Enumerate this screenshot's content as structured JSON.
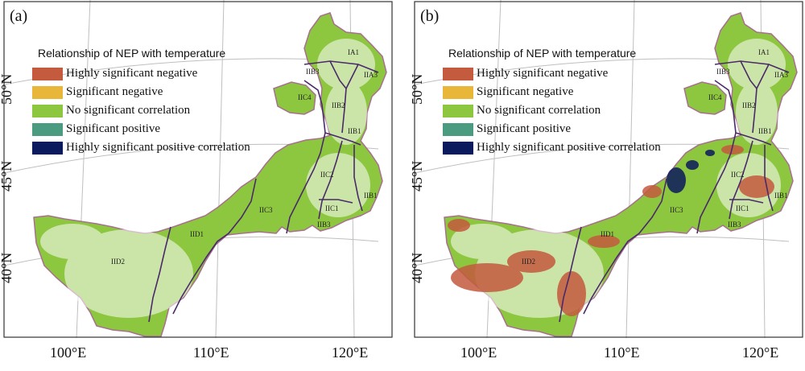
{
  "legend": {
    "title": "Relationship of NEP with temperature",
    "items": [
      {
        "label": "Highly significant negative",
        "color": "#c45a3e"
      },
      {
        "label": "Significant negative",
        "color": "#e8b73a"
      },
      {
        "label": "No significant  correlation",
        "color": "#8dc63f"
      },
      {
        "label": "Significant positive",
        "color": "#4a9b7f"
      },
      {
        "label": "Highly significant positive correlation",
        "color": "#0b1a5c"
      }
    ]
  },
  "panels": [
    {
      "label": "(a)"
    },
    {
      "label": "(b)"
    }
  ],
  "axes": {
    "lon_ticks": [
      "100°E",
      "110°E",
      "120°E"
    ],
    "lat_ticks": [
      "50°N",
      "45°N",
      "40°N"
    ]
  },
  "zones": [
    "IA1",
    "IIA3",
    "IIB3",
    "IIC4",
    "IIB2",
    "IIB1",
    "IIC2",
    "IIB1",
    "IIC1",
    "IIB3",
    "IIC3",
    "IID1",
    "IID2"
  ],
  "colors": {
    "boundary": "#a8708f",
    "zone_lines": "#4a2a6a",
    "grid": "#bfbfbf",
    "frame": "#333333"
  }
}
